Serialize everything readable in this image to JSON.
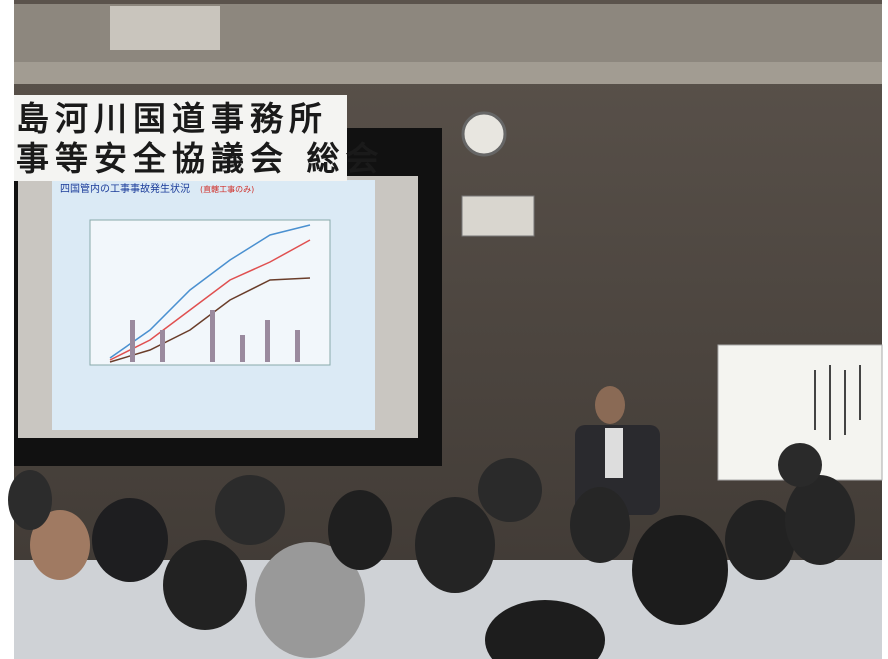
{
  "banner": {
    "line1": "島河川国道事務所",
    "line2": "事等安全協議会 総会"
  },
  "slide": {
    "title": "四国管内の工事事故発生状況",
    "subtitle": "(直轄工事のみ)"
  }
}
